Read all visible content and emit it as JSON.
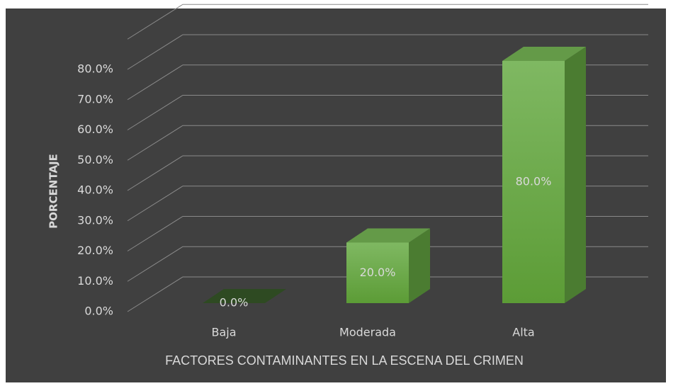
{
  "chart_data": {
    "type": "bar3d",
    "x_label": "FACTORES CONTAMINANTES EN LA ESCENA DEL CRIMEN",
    "y_label": "PORCENTAJE",
    "categories": [
      "Baja",
      "Moderada",
      "Alta"
    ],
    "values": [
      0,
      20,
      80
    ],
    "value_labels": [
      "0.0%",
      "20.0%",
      "80.0%"
    ],
    "color": "#6aaa45",
    "ylim": [
      0,
      90
    ],
    "yticks": [
      {
        "value": 0,
        "label": "0.0%"
      },
      {
        "value": 10,
        "label": "10.0%"
      },
      {
        "value": 20,
        "label": "20.0%"
      },
      {
        "value": 30,
        "label": "30.0%"
      },
      {
        "value": 40,
        "label": "40.0%"
      },
      {
        "value": 50,
        "label": "50.0%"
      },
      {
        "value": 60,
        "label": "60.0%"
      },
      {
        "value": 70,
        "label": "70.0%"
      },
      {
        "value": 80,
        "label": "80.0%"
      }
    ],
    "grid": true
  }
}
